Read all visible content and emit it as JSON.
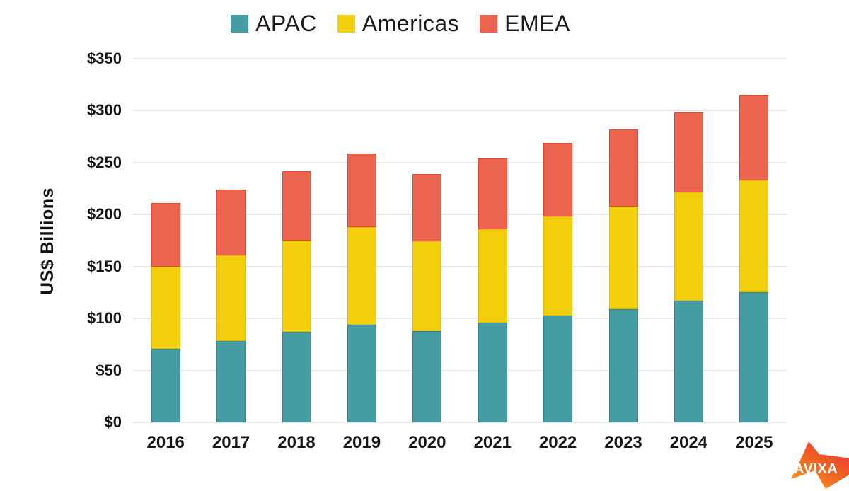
{
  "chart_data": {
    "type": "bar",
    "stacked": true,
    "categories": [
      "2016",
      "2017",
      "2018",
      "2019",
      "2020",
      "2021",
      "2022",
      "2023",
      "2024",
      "2025"
    ],
    "series": [
      {
        "name": "APAC",
        "color": "#459CA2",
        "border": "#35868C",
        "values": [
          71,
          78,
          87,
          94,
          88,
          96,
          103,
          109,
          117,
          125
        ]
      },
      {
        "name": "Americas",
        "color": "#F2CE0D",
        "border": "#E2BF07",
        "values": [
          79,
          83,
          88,
          94,
          86,
          90,
          95,
          99,
          104,
          108
        ]
      },
      {
        "name": "EMEA",
        "color": "#EB6450",
        "border": "#E8472D",
        "values": [
          61,
          63,
          67,
          71,
          65,
          68,
          71,
          74,
          77,
          82
        ]
      }
    ],
    "totals": [
      211,
      224,
      242,
      259,
      239,
      254,
      269,
      282,
      298,
      315
    ],
    "title": "",
    "xlabel": "",
    "ylabel": "US$ Billions",
    "ylim": [
      0,
      350
    ],
    "y_ticks": [
      {
        "value": 0,
        "label": "$0"
      },
      {
        "value": 50,
        "label": "$50"
      },
      {
        "value": 100,
        "label": "$100"
      },
      {
        "value": 150,
        "label": "$150"
      },
      {
        "value": 200,
        "label": "$200"
      },
      {
        "value": 250,
        "label": "$250"
      },
      {
        "value": 300,
        "label": "$300"
      },
      {
        "value": 350,
        "label": "$350"
      }
    ],
    "legend_position": "top",
    "grid": true
  },
  "branding": {
    "logo_text": "AVIXA",
    "logo_gradient_start": "#F9A01B",
    "logo_gradient_end": "#E5195D"
  }
}
